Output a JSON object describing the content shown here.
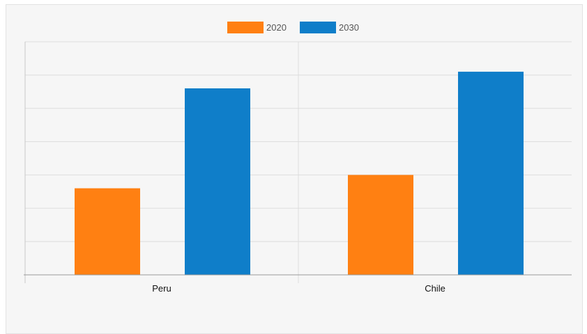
{
  "chart_data": {
    "type": "bar",
    "categories": [
      "Peru",
      "Chile"
    ],
    "series": [
      {
        "name": "2020",
        "color": "#ff8012",
        "values": [
          26,
          30
        ]
      },
      {
        "name": "2030",
        "color": "#0f7ec9",
        "values": [
          56,
          61
        ]
      }
    ],
    "ylim": [
      0,
      70
    ],
    "y_gridlines": 7,
    "legend_position": "top-center",
    "grid": true
  }
}
